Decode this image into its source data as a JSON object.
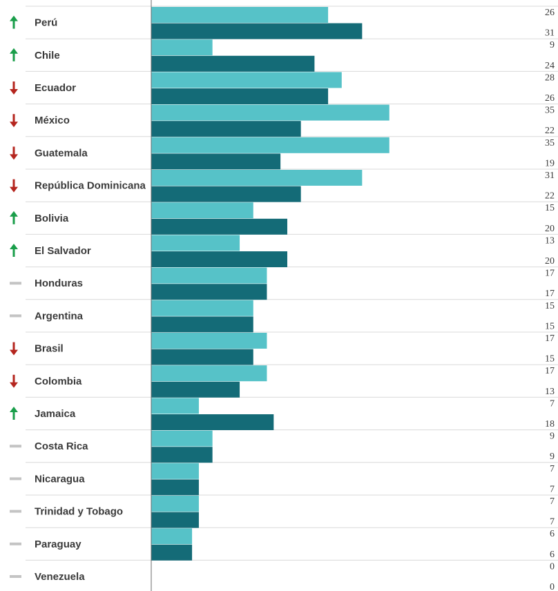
{
  "chart_data": {
    "type": "bar",
    "orientation": "horizontal",
    "categories": [
      "Perú",
      "Chile",
      "Ecuador",
      "México",
      "Guatemala",
      "República Dominicana",
      "Bolivia",
      "El Salvador",
      "Honduras",
      "Argentina",
      "Brasil",
      "Colombia",
      "Jamaica",
      "Costa Rica",
      "Nicaragua",
      "Trinidad y Tobago",
      "Paraguay",
      "Venezuela"
    ],
    "trend": [
      "up",
      "up",
      "down",
      "down",
      "down",
      "down",
      "up",
      "up",
      "same",
      "same",
      "down",
      "down",
      "up",
      "same",
      "same",
      "same",
      "same",
      "same"
    ],
    "series": [
      {
        "values": [
          26,
          9,
          28,
          35,
          35,
          31,
          15,
          13,
          17,
          15,
          17,
          17,
          7,
          9,
          7,
          7,
          6,
          0
        ],
        "color": "#56c2c8"
      },
      {
        "values": [
          31,
          24,
          26,
          22,
          19,
          22,
          20,
          20,
          17,
          15,
          15,
          13,
          18,
          9,
          7,
          7,
          6,
          0
        ],
        "color": "#146b77"
      }
    ],
    "xlim": [
      0,
      35
    ],
    "legend": "none",
    "grid": false
  },
  "colors": {
    "up": "#1a9e4a",
    "down": "#b5261f",
    "same": "#c4c4c4",
    "separator": "#d9d9d9",
    "axis": "#6b6b6b"
  },
  "icons": {
    "up": "arrow-up-icon",
    "down": "arrow-down-icon",
    "same": "dash-icon"
  }
}
